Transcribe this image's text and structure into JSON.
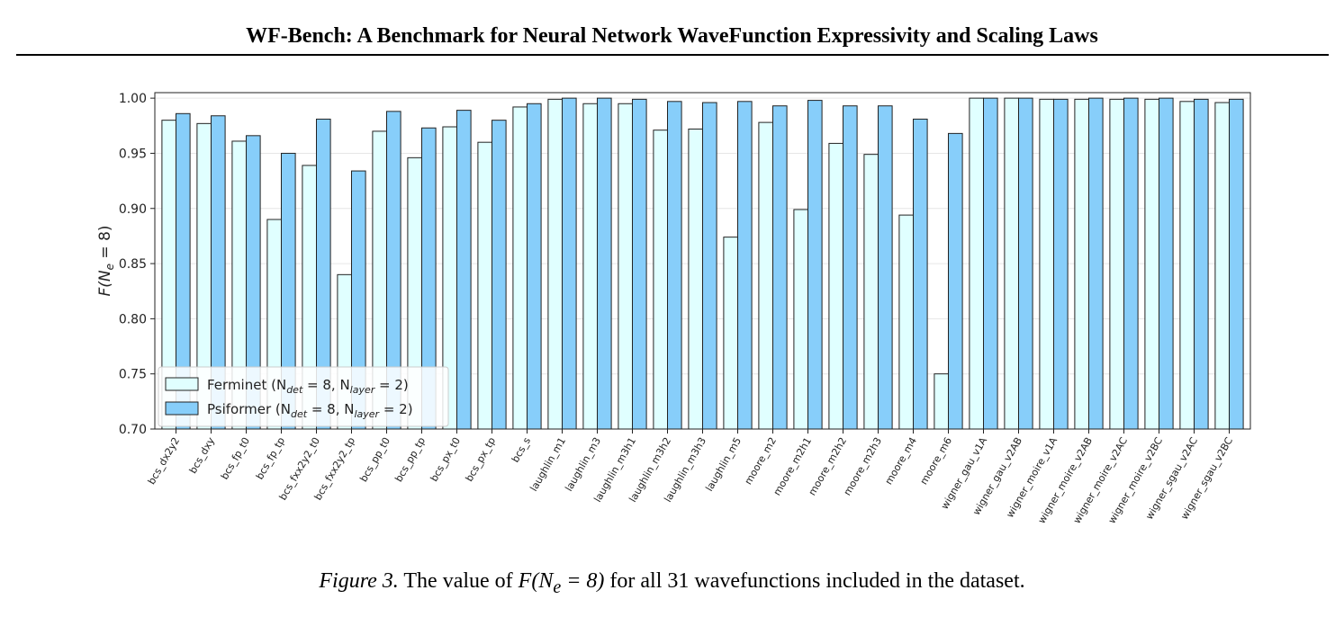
{
  "header": {
    "title": "WF-Bench: A Benchmark for Neural Network WaveFunction Expressivity and Scaling Laws"
  },
  "chart_data": {
    "type": "bar",
    "ylabel": "F(N_e = 8)",
    "ylim": [
      0.7,
      1.005
    ],
    "yticks": [
      0.7,
      0.75,
      0.8,
      0.85,
      0.9,
      0.95,
      1.0
    ],
    "ytick_labels": [
      "0.70",
      "0.75",
      "0.80",
      "0.85",
      "0.90",
      "0.95",
      "1.00"
    ],
    "grid": true,
    "legend_position": "lower-left",
    "categories": [
      "bcs_dx2y2",
      "bcs_dxy",
      "bcs_fp_t0",
      "bcs_fp_tp",
      "bcs_fxx2y2_t0",
      "bcs_fxx2y2_tp",
      "bcs_pp_t0",
      "bcs_pp_tp",
      "bcs_px_t0",
      "bcs_px_tp",
      "bcs_s",
      "laughlin_m1",
      "laughlin_m3",
      "laughlin_m3h1",
      "laughlin_m3h2",
      "laughlin_m3h3",
      "laughlin_m5",
      "moore_m2",
      "moore_m2h1",
      "moore_m2h2",
      "moore_m2h3",
      "moore_m4",
      "moore_m6",
      "wigner_gau_v1A",
      "wigner_gau_v2AB",
      "wigner_moire_v1A",
      "wigner_moire_v2AB",
      "wigner_moire_v2AC",
      "wigner_moire_v2BC",
      "wigner_sgau_v2AC",
      "wigner_sgau_v2BC"
    ],
    "series": [
      {
        "name": "Ferminet (N_det = 8, N_layer = 2)",
        "legend": {
          "main": "Ferminet (N",
          "sub1": "det",
          "mid": " = 8, N",
          "sub2": "layer",
          "end": " = 2)"
        },
        "color": "#e0ffff",
        "values": [
          0.98,
          0.977,
          0.961,
          0.89,
          0.939,
          0.84,
          0.97,
          0.946,
          0.974,
          0.96,
          0.992,
          0.999,
          0.995,
          0.995,
          0.971,
          0.972,
          0.874,
          0.978,
          0.899,
          0.959,
          0.949,
          0.894,
          0.75,
          1.0,
          1.0,
          0.999,
          0.999,
          0.999,
          0.999,
          0.997,
          0.996
        ]
      },
      {
        "name": "Psiformer (N_det = 8, N_layer = 2)",
        "legend": {
          "main": "Psiformer (N",
          "sub1": "det",
          "mid": " = 8, N",
          "sub2": "layer",
          "end": " = 2)"
        },
        "color": "#87cefa",
        "values": [
          0.986,
          0.984,
          0.966,
          0.95,
          0.981,
          0.934,
          0.988,
          0.973,
          0.989,
          0.98,
          0.995,
          1.0,
          1.0,
          0.999,
          0.997,
          0.996,
          0.997,
          0.993,
          0.998,
          0.993,
          0.993,
          0.981,
          0.968,
          1.0,
          1.0,
          0.999,
          1.0,
          1.0,
          1.0,
          0.999,
          0.999
        ]
      }
    ]
  },
  "caption": {
    "figure_label": "Figure 3.",
    "text_before": "The value of",
    "math": "F(N",
    "math_sub": "e",
    "math_after": " = 8)",
    "text_after": "for all 31 wavefunctions included in the dataset."
  }
}
